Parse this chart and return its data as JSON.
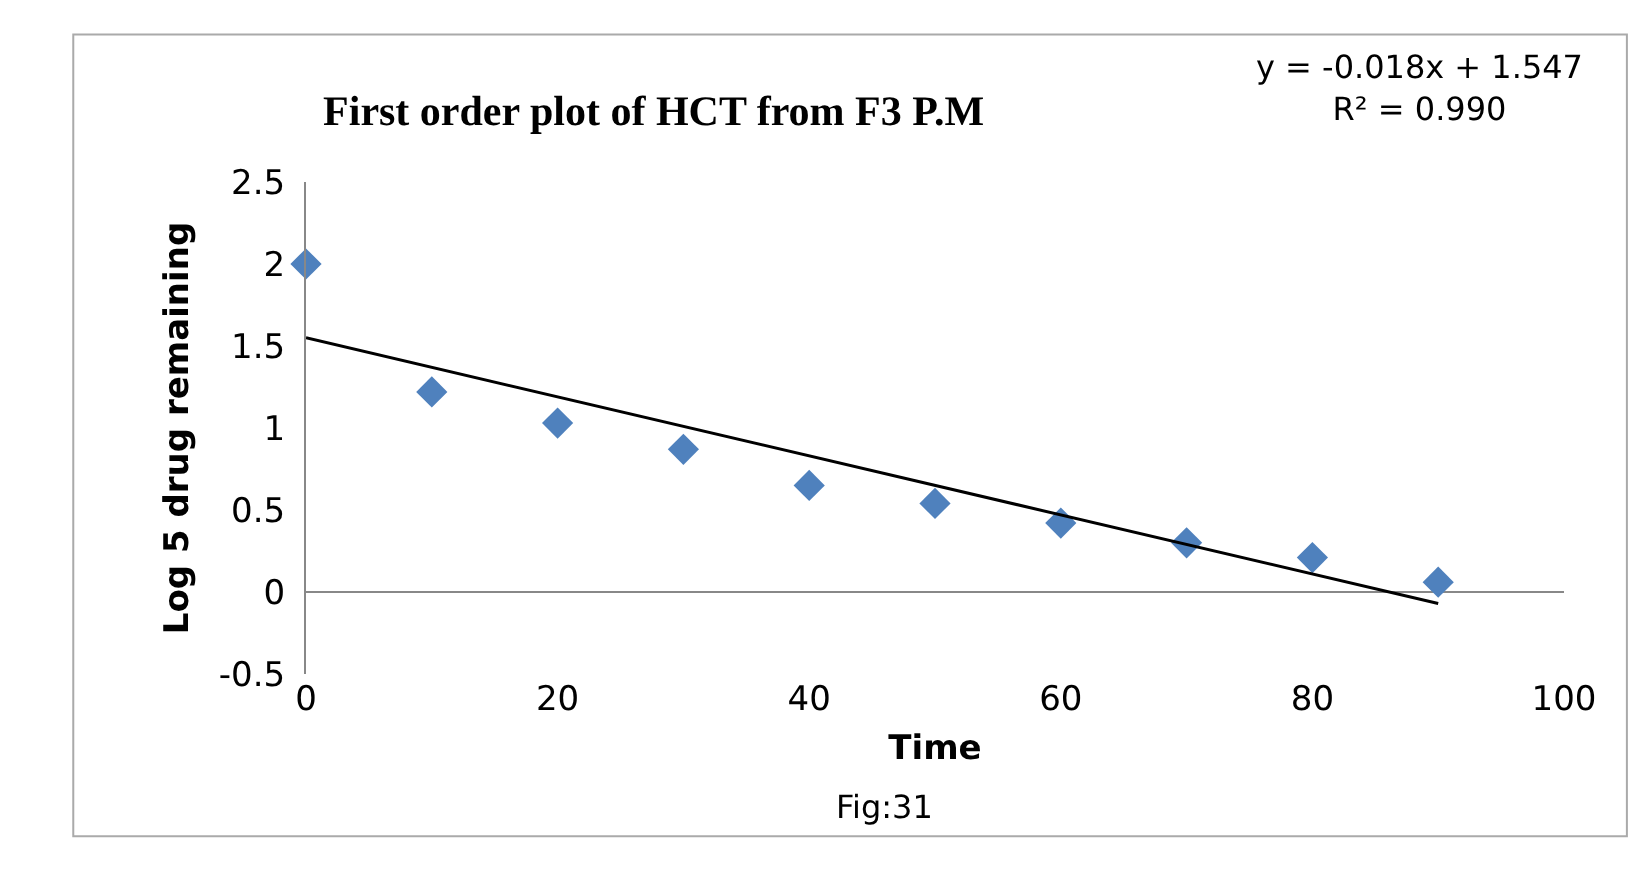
{
  "chart_data": {
    "type": "scatter",
    "title": "First order plot of HCT from F3 P.M",
    "xlabel": "Time",
    "ylabel": "Log 5 drug remaining",
    "x": [
      0,
      10,
      20,
      30,
      40,
      50,
      60,
      70,
      80,
      90
    ],
    "series": [
      {
        "color": "#4f81bd",
        "marker": "diamond",
        "values": [
          2.0,
          1.22,
          1.03,
          0.87,
          0.65,
          0.54,
          0.42,
          0.3,
          0.21,
          0.06
        ]
      },
      {
        "type": "line",
        "color": "#000000",
        "marker": "none",
        "x": [
          0,
          90
        ],
        "values": [
          1.55,
          -0.07
        ]
      }
    ],
    "annotations": [
      "y = -0.018x + 1.547\nR² = 0.990",
      "Fig:31"
    ],
    "xlim": [
      0,
      100
    ],
    "xticks": [
      0,
      20,
      40,
      60,
      80,
      100
    ],
    "ylim": [
      -0.5,
      2.5
    ],
    "yticks": [
      -0.5,
      0,
      0.5,
      1,
      1.5,
      2,
      2.5
    ],
    "legend": false
  }
}
